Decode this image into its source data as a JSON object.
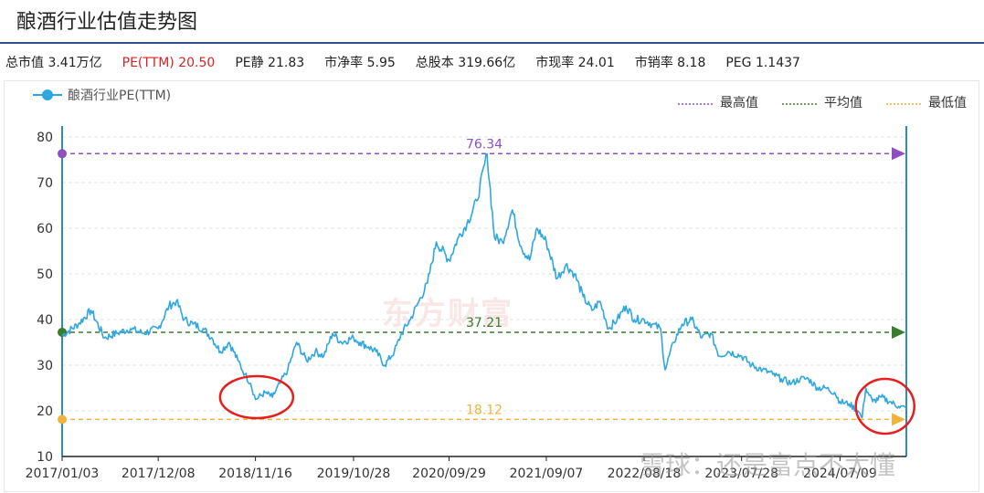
{
  "header": {
    "title": "酿酒行业估值走势图"
  },
  "stats": [
    {
      "text": "总市值 3.41万亿",
      "color": "#222222"
    },
    {
      "text": "PE(TTM) 20.50",
      "color": "#e02020"
    },
    {
      "text": "PE静 21.83",
      "color": "#222222"
    },
    {
      "text": "市净率 5.95",
      "color": "#222222"
    },
    {
      "text": "总股本 319.66亿",
      "color": "#222222"
    },
    {
      "text": "市现率 24.01",
      "color": "#222222"
    },
    {
      "text": "市销率 8.18",
      "color": "#222222"
    },
    {
      "text": "PEG 1.1437",
      "color": "#222222"
    }
  ],
  "watermark": "东方财富",
  "source_watermark": "雪球：还是富点不太懂",
  "chart_data": {
    "type": "line",
    "title": "",
    "xlabel": "",
    "ylabel": "",
    "ylim": [
      10,
      80
    ],
    "yticks": [
      10,
      20,
      30,
      40,
      50,
      60,
      70,
      80
    ],
    "xticks": [
      "2017/01/03",
      "2017/12/08",
      "2018/11/16",
      "2019/10/28",
      "2020/09/29",
      "2021/09/07",
      "2022/08/18",
      "2023/07/28",
      "2024/07/09"
    ],
    "x_range": [
      "2017/01/03",
      "2025/02/28"
    ],
    "grid": true,
    "legend_position": "top",
    "series": [
      {
        "name": "酿酒行业PE(TTM)",
        "color": "#2ea7e0",
        "x": [
          "2017/01/03",
          "2017/03/01",
          "2017/04/15",
          "2017/06/01",
          "2017/07/15",
          "2017/09/01",
          "2017/10/15",
          "2017/12/08",
          "2018/01/15",
          "2018/02/10",
          "2018/03/10",
          "2018/04/10",
          "2018/05/15",
          "2018/06/15",
          "2018/07/15",
          "2018/08/15",
          "2018/09/15",
          "2018/10/10",
          "2018/10/30",
          "2018/11/16",
          "2018/12/20",
          "2019/01/15",
          "2019/02/10",
          "2019/03/10",
          "2019/04/10",
          "2019/05/15",
          "2019/06/15",
          "2019/07/15",
          "2019/08/15",
          "2019/09/15",
          "2019/10/28",
          "2019/11/20",
          "2019/12/20",
          "2020/01/15",
          "2020/02/15",
          "2020/03/20",
          "2020/04/15",
          "2020/05/15",
          "2020/06/15",
          "2020/07/15",
          "2020/08/15",
          "2020/09/29",
          "2020/11/01",
          "2020/12/01",
          "2021/01/05",
          "2021/02/10",
          "2021/03/08",
          "2021/04/05",
          "2021/05/10",
          "2021/06/10",
          "2021/07/10",
          "2021/08/05",
          "2021/09/07",
          "2021/10/15",
          "2021/11/15",
          "2021/12/15",
          "2022/01/15",
          "2022/02/15",
          "2022/03/15",
          "2022/04/15",
          "2022/05/15",
          "2022/06/15",
          "2022/07/15",
          "2022/08/18",
          "2022/09/15",
          "2022/10/15",
          "2022/10/31",
          "2022/11/30",
          "2022/12/30",
          "2023/02/01",
          "2023/03/10",
          "2023/04/10",
          "2023/05/10",
          "2023/06/10",
          "2023/07/28",
          "2023/09/01",
          "2023/10/10",
          "2023/11/15",
          "2023/12/15",
          "2024/01/20",
          "2024/02/20",
          "2024/03/20",
          "2024/04/20",
          "2024/05/20",
          "2024/06/20",
          "2024/07/09",
          "2024/08/10",
          "2024/09/10",
          "2024/09/25",
          "2024/10/08",
          "2024/11/01",
          "2024/12/01",
          "2025/01/01",
          "2025/02/01",
          "2025/02/28"
        ],
        "values": [
          36.5,
          39,
          42,
          36,
          37,
          38,
          37,
          38,
          43,
          44,
          40,
          39,
          38,
          36,
          33,
          35,
          31,
          28,
          26,
          22.5,
          24,
          23,
          26,
          29,
          35,
          31,
          33,
          32,
          37,
          35,
          36,
          35,
          34,
          33,
          30,
          33,
          37,
          40,
          44,
          48,
          57,
          53,
          58,
          61,
          66,
          76.3,
          58,
          57,
          64,
          56,
          53,
          60,
          57,
          49,
          52,
          50,
          45,
          42,
          44,
          38,
          40,
          43,
          40,
          40,
          39,
          38,
          29,
          35,
          39,
          40,
          36,
          37,
          32,
          33,
          32,
          30,
          29,
          28,
          27,
          26,
          27,
          27,
          25,
          25,
          24,
          22,
          21.5,
          20,
          18.5,
          25,
          22,
          23,
          22,
          21,
          20.5
        ]
      }
    ],
    "reference_lines": [
      {
        "name": "最高值",
        "value": 76.34,
        "label": "76.34",
        "color": "#8e4fc0"
      },
      {
        "name": "平均值",
        "value": 37.21,
        "label": "37.21",
        "color": "#3a7d2f"
      },
      {
        "name": "最低值",
        "value": 18.12,
        "label": "18.12",
        "color": "#f0b43c"
      }
    ],
    "annotations": [
      {
        "type": "circle",
        "x": "2018/11/20",
        "y": 23
      },
      {
        "type": "circle",
        "x": "2024/12/15",
        "y": 21
      }
    ]
  }
}
